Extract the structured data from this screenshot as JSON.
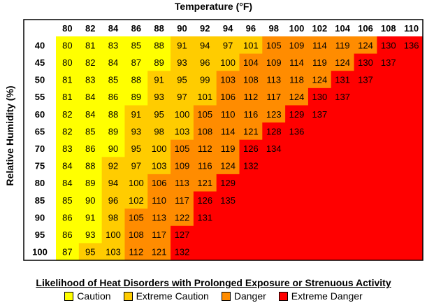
{
  "chart_data": {
    "type": "heatmap",
    "title": "Temperature (°F)",
    "ylabel": "Relative Humidity (%)",
    "x": [
      80,
      82,
      84,
      86,
      88,
      90,
      92,
      94,
      96,
      98,
      100,
      102,
      104,
      106,
      108,
      110
    ],
    "y": [
      40,
      45,
      50,
      55,
      60,
      65,
      70,
      75,
      80,
      85,
      90,
      95,
      100
    ],
    "values": [
      [
        80,
        81,
        83,
        85,
        88,
        91,
        94,
        97,
        101,
        105,
        109,
        114,
        119,
        124,
        130,
        136
      ],
      [
        80,
        82,
        84,
        87,
        89,
        93,
        96,
        100,
        104,
        109,
        114,
        119,
        124,
        130,
        137,
        null
      ],
      [
        81,
        83,
        85,
        88,
        91,
        95,
        99,
        103,
        108,
        113,
        118,
        124,
        131,
        137,
        null,
        null
      ],
      [
        81,
        84,
        86,
        89,
        93,
        97,
        101,
        106,
        112,
        117,
        124,
        130,
        137,
        null,
        null,
        null
      ],
      [
        82,
        84,
        88,
        91,
        95,
        100,
        105,
        110,
        116,
        123,
        129,
        137,
        null,
        null,
        null,
        null
      ],
      [
        82,
        85,
        89,
        93,
        98,
        103,
        108,
        114,
        121,
        128,
        136,
        null,
        null,
        null,
        null,
        null
      ],
      [
        83,
        86,
        90,
        95,
        100,
        105,
        112,
        119,
        126,
        134,
        null,
        null,
        null,
        null,
        null,
        null
      ],
      [
        84,
        88,
        92,
        97,
        103,
        109,
        116,
        124,
        132,
        null,
        null,
        null,
        null,
        null,
        null,
        null
      ],
      [
        84,
        89,
        94,
        100,
        106,
        113,
        121,
        129,
        null,
        null,
        null,
        null,
        null,
        null,
        null,
        null
      ],
      [
        85,
        90,
        96,
        102,
        110,
        117,
        126,
        135,
        null,
        null,
        null,
        null,
        null,
        null,
        null,
        null
      ],
      [
        86,
        91,
        98,
        105,
        113,
        122,
        131,
        null,
        null,
        null,
        null,
        null,
        null,
        null,
        null,
        null
      ],
      [
        86,
        93,
        100,
        108,
        117,
        127,
        null,
        null,
        null,
        null,
        null,
        null,
        null,
        null,
        null,
        null
      ],
      [
        87,
        95,
        103,
        112,
        121,
        132,
        null,
        null,
        null,
        null,
        null,
        null,
        null,
        null,
        null,
        null
      ]
    ],
    "categories_legend": [
      {
        "name": "Caution",
        "color": "#ffff00"
      },
      {
        "name": "Extreme Caution",
        "color": "#ffcc00"
      },
      {
        "name": "Danger",
        "color": "#ff8c00"
      },
      {
        "name": "Extreme Danger",
        "color": "#ff0000"
      }
    ],
    "legend_title": "Likelihood of Heat Disorders with Prolonged Exposure or Strenuous Activity",
    "band_of_cell": [
      [
        0,
        0,
        0,
        0,
        0,
        1,
        1,
        1,
        1,
        2,
        2,
        2,
        2,
        2,
        3,
        3
      ],
      [
        0,
        0,
        0,
        0,
        0,
        1,
        1,
        1,
        2,
        2,
        2,
        2,
        2,
        3,
        3,
        3
      ],
      [
        0,
        0,
        0,
        0,
        1,
        1,
        1,
        2,
        2,
        2,
        2,
        2,
        3,
        3,
        3,
        3
      ],
      [
        0,
        0,
        0,
        0,
        1,
        1,
        1,
        2,
        2,
        2,
        2,
        3,
        3,
        3,
        3,
        3
      ],
      [
        0,
        0,
        0,
        1,
        1,
        1,
        2,
        2,
        2,
        2,
        3,
        3,
        3,
        3,
        3,
        3
      ],
      [
        0,
        0,
        0,
        1,
        1,
        1,
        2,
        2,
        2,
        3,
        3,
        3,
        3,
        3,
        3,
        3
      ],
      [
        0,
        0,
        0,
        1,
        1,
        2,
        2,
        2,
        3,
        3,
        3,
        3,
        3,
        3,
        3,
        3
      ],
      [
        0,
        0,
        1,
        1,
        1,
        2,
        2,
        2,
        3,
        3,
        3,
        3,
        3,
        3,
        3,
        3
      ],
      [
        0,
        0,
        1,
        1,
        2,
        2,
        2,
        3,
        3,
        3,
        3,
        3,
        3,
        3,
        3,
        3
      ],
      [
        0,
        0,
        1,
        1,
        2,
        2,
        3,
        3,
        3,
        3,
        3,
        3,
        3,
        3,
        3,
        3
      ],
      [
        0,
        0,
        1,
        2,
        2,
        2,
        3,
        3,
        3,
        3,
        3,
        3,
        3,
        3,
        3,
        3
      ],
      [
        0,
        0,
        1,
        2,
        2,
        3,
        3,
        3,
        3,
        3,
        3,
        3,
        3,
        3,
        3,
        3
      ],
      [
        0,
        1,
        1,
        2,
        2,
        3,
        3,
        3,
        3,
        3,
        3,
        3,
        3,
        3,
        3,
        3
      ]
    ]
  }
}
